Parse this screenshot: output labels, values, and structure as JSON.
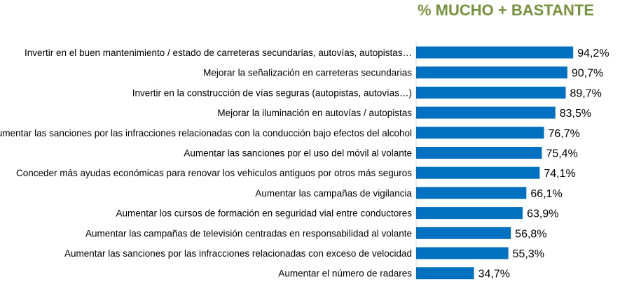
{
  "chart_data": {
    "type": "bar",
    "orientation": "horizontal",
    "title": "% MUCHO + BASTANTE",
    "categories": [
      "Invertir en el buen mantenimiento / estado de carreteras secundarias, autovías, autopistas…",
      "Mejorar la señalización en carreteras secundarias",
      "Invertir en la construcción de vías seguras (autopistas, autovías…)",
      "Mejorar la iluminación en autovías / autopistas",
      "Aumentar las sanciones por las infracciones relacionadas con la conducción bajo efectos del alcohol",
      "Aumentar las sanciones por el uso del móvil al volante",
      "Conceder más ayudas económicas para renovar los vehiculos antiguos por otros más seguros",
      "Aumentar las campañas de vigilancia",
      "Aumentar los cursos de formación en seguridad vial entre conductores",
      "Aumentar las campañas de televisión centradas en responsabilidad al volante",
      "Aumentar las sanciones por las infracciones relacionadas con exceso de velocidad",
      "Aumentar el número de radares"
    ],
    "values": [
      94.2,
      90.7,
      89.7,
      83.5,
      76.7,
      75.4,
      74.1,
      66.1,
      63.9,
      56.8,
      55.3,
      34.7
    ],
    "value_labels": [
      "94,2%",
      "90,7%",
      "89,7%",
      "83,5%",
      "76,7%",
      "75,4%",
      "74,1%",
      "66,1%",
      "63,9%",
      "56,8%",
      "55,3%",
      "34,7%"
    ],
    "xlim": [
      0,
      100
    ],
    "grid": false,
    "legend": "none",
    "bar_color": "#0070c0",
    "title_color": "#76923c"
  }
}
